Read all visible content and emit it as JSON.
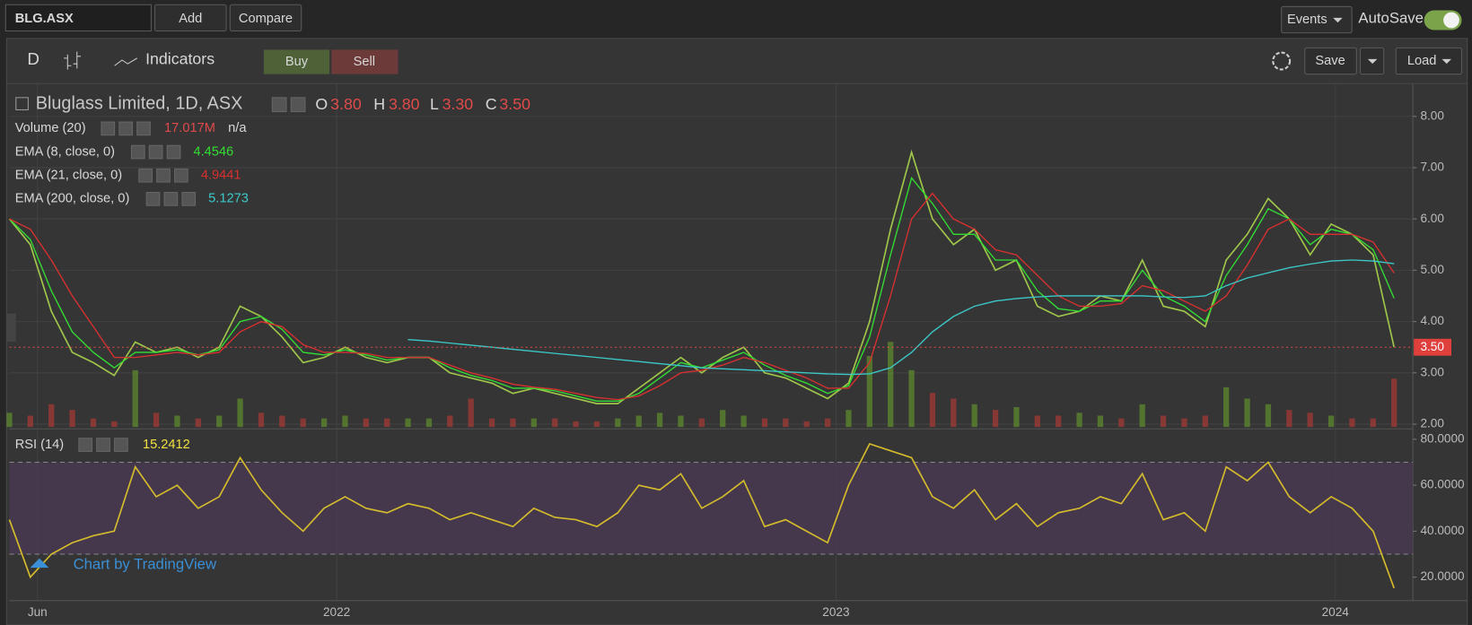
{
  "toolbar": {
    "symbol": "BLG.ASX",
    "add": "Add",
    "compare": "Compare",
    "events": "Events",
    "autosave": "AutoSave",
    "interval": "D",
    "indicators": "Indicators",
    "buy": "Buy",
    "sell": "Sell",
    "save": "Save",
    "load": "Load"
  },
  "watermark": "Chart by TradingView",
  "chart_data": [
    {
      "type": "line",
      "title": "Bluglass Limited, 1D, ASX",
      "ohlc": [
        {
          "label": "O",
          "value": "3.80"
        },
        {
          "label": "H",
          "value": "3.80"
        },
        {
          "label": "L",
          "value": "3.30"
        },
        {
          "label": "C",
          "value": "3.50"
        }
      ],
      "xlim": [
        0,
        66
      ],
      "xticks": [
        {
          "value": 1.34,
          "label": "Jun"
        },
        {
          "value": 15.6,
          "label": "2022"
        },
        {
          "value": 39.4,
          "label": "2023"
        },
        {
          "value": 63.2,
          "label": "2024"
        }
      ],
      "ylim": [
        1.945,
        8.585
      ],
      "yticks": [
        {
          "value": 2,
          "label": "2.00"
        },
        {
          "value": 3,
          "label": "3.00"
        },
        {
          "value": 4,
          "label": "4.00"
        },
        {
          "value": 5,
          "label": "5.00"
        },
        {
          "value": 6,
          "label": "6.00"
        },
        {
          "value": 7,
          "label": "7.00"
        },
        {
          "value": 8,
          "label": "8.00"
        }
      ],
      "grid": true,
      "volume": {
        "name": "Volume (20)",
        "legend_value": "17.017M",
        "ma_value": "n/a",
        "ylim": [
          0,
          120
        ],
        "up_color": "#5d8a2e",
        "down_color": "#a33a35",
        "values": [
          5,
          4,
          8,
          6,
          3,
          2,
          20,
          5,
          4,
          3,
          4,
          10,
          5,
          4,
          3,
          3,
          4,
          3,
          3,
          3,
          3,
          4,
          10,
          3,
          3,
          3,
          3,
          2,
          2,
          3,
          4,
          5,
          4,
          3,
          6,
          4,
          3,
          3,
          2,
          3,
          6,
          25,
          30,
          20,
          12,
          10,
          8,
          6,
          7,
          4,
          4,
          5,
          4,
          3,
          8,
          4,
          3,
          4,
          14,
          10,
          8,
          6,
          5,
          4,
          3,
          3,
          17.017
        ]
      },
      "series": [
        {
          "color": "#9fc54a",
          "values": [
            6.0,
            5.5,
            4.2,
            3.4,
            3.2,
            2.95,
            3.6,
            3.4,
            3.5,
            3.3,
            3.5,
            4.3,
            4.1,
            3.7,
            3.2,
            3.3,
            3.5,
            3.3,
            3.2,
            3.3,
            3.3,
            3.0,
            2.9,
            2.8,
            2.6,
            2.7,
            2.6,
            2.5,
            2.4,
            2.4,
            2.7,
            3.0,
            3.3,
            3.0,
            3.3,
            3.5,
            3.0,
            2.9,
            2.7,
            2.5,
            2.8,
            4.0,
            5.8,
            7.3,
            6.0,
            5.5,
            5.8,
            5.0,
            5.2,
            4.3,
            4.1,
            4.2,
            4.5,
            4.4,
            5.2,
            4.3,
            4.2,
            3.9,
            5.2,
            5.7,
            6.4,
            6.0,
            5.3,
            5.9,
            5.7,
            5.3,
            3.5
          ]
        },
        {
          "name": "EMA (8, close, 0)",
          "color": "#33dd33",
          "values": [
            6.0,
            5.6,
            4.6,
            3.8,
            3.4,
            3.1,
            3.4,
            3.4,
            3.45,
            3.35,
            3.45,
            4.0,
            4.1,
            3.85,
            3.4,
            3.35,
            3.45,
            3.35,
            3.25,
            3.3,
            3.3,
            3.1,
            2.95,
            2.85,
            2.7,
            2.7,
            2.65,
            2.55,
            2.45,
            2.45,
            2.6,
            2.9,
            3.2,
            3.1,
            3.25,
            3.4,
            3.15,
            2.95,
            2.8,
            2.6,
            2.75,
            3.7,
            5.3,
            6.8,
            6.3,
            5.7,
            5.7,
            5.2,
            5.2,
            4.6,
            4.25,
            4.2,
            4.4,
            4.4,
            5.0,
            4.5,
            4.3,
            4.0,
            4.9,
            5.5,
            6.2,
            6.0,
            5.5,
            5.8,
            5.7,
            5.4,
            4.4546
          ]
        },
        {
          "name": "EMA (21, close, 0)",
          "color": "#d83030",
          "values": [
            6.0,
            5.8,
            5.2,
            4.5,
            3.9,
            3.3,
            3.3,
            3.35,
            3.4,
            3.35,
            3.4,
            3.8,
            4.0,
            3.9,
            3.55,
            3.4,
            3.4,
            3.38,
            3.3,
            3.3,
            3.3,
            3.15,
            3.0,
            2.9,
            2.78,
            2.72,
            2.68,
            2.6,
            2.52,
            2.48,
            2.55,
            2.75,
            3.0,
            3.05,
            3.15,
            3.3,
            3.2,
            3.05,
            2.9,
            2.7,
            2.7,
            3.2,
            4.5,
            6.0,
            6.5,
            6.0,
            5.8,
            5.4,
            5.3,
            4.9,
            4.5,
            4.3,
            4.3,
            4.35,
            4.7,
            4.6,
            4.4,
            4.2,
            4.5,
            5.1,
            5.8,
            6.0,
            5.7,
            5.7,
            5.7,
            5.55,
            4.9441
          ]
        },
        {
          "name": "EMA (200, close, 0)",
          "color": "#3cc8c8",
          "values": [
            null,
            null,
            null,
            null,
            null,
            null,
            null,
            null,
            null,
            null,
            null,
            null,
            null,
            null,
            null,
            null,
            null,
            null,
            null,
            3.65,
            3.62,
            3.58,
            3.54,
            3.5,
            3.46,
            3.42,
            3.38,
            3.34,
            3.3,
            3.26,
            3.22,
            3.18,
            3.14,
            3.1,
            3.08,
            3.06,
            3.04,
            3.02,
            3.0,
            2.98,
            2.97,
            2.98,
            3.1,
            3.4,
            3.8,
            4.1,
            4.3,
            4.4,
            4.45,
            4.48,
            4.5,
            4.5,
            4.5,
            4.5,
            4.5,
            4.48,
            4.47,
            4.5,
            4.7,
            4.85,
            4.95,
            5.05,
            5.12,
            5.18,
            5.2,
            5.18,
            5.1273
          ]
        }
      ]
    },
    {
      "type": "line",
      "title": "RSI (14)",
      "xlim": [
        0,
        66
      ],
      "ylim": [
        9.8,
        83.3
      ],
      "yticks": [
        {
          "value": 20,
          "label": "20.0000"
        },
        {
          "value": 40,
          "label": "40.0000"
        },
        {
          "value": 60,
          "label": "60.0000"
        },
        {
          "value": 80,
          "label": "80.0000"
        }
      ],
      "bands": [
        30,
        70
      ],
      "series": [
        {
          "color": "#d4bb2c",
          "values": [
            45,
            20,
            30,
            35,
            38,
            40,
            68,
            55,
            60,
            50,
            55,
            72,
            58,
            48,
            40,
            50,
            55,
            50,
            48,
            52,
            50,
            45,
            48,
            45,
            42,
            50,
            46,
            45,
            42,
            48,
            60,
            58,
            65,
            50,
            55,
            62,
            42,
            45,
            40,
            35,
            60,
            78,
            75,
            72,
            55,
            50,
            58,
            45,
            52,
            42,
            48,
            50,
            55,
            52,
            65,
            45,
            48,
            40,
            68,
            62,
            70,
            55,
            48,
            55,
            50,
            40,
            15.2412
          ]
        }
      ]
    }
  ]
}
